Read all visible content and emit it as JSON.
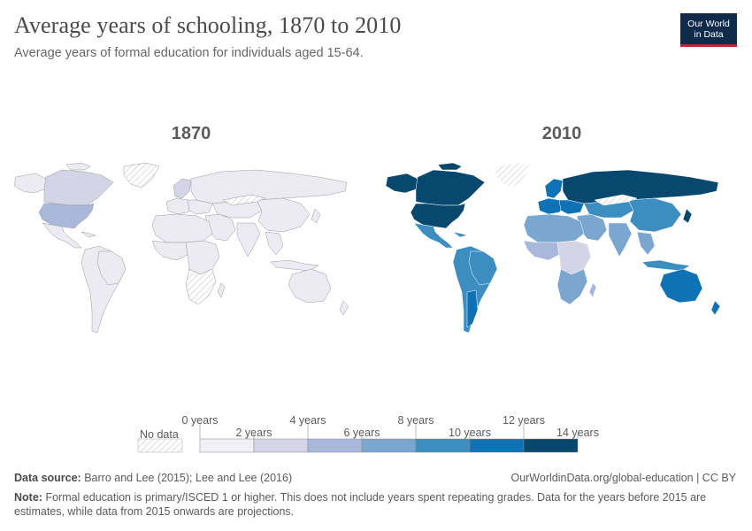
{
  "header": {
    "title": "Average years of schooling, 1870 to 2010",
    "subtitle": "Average years of formal education for individuals aged 15-64."
  },
  "logo": {
    "line1": "Our World",
    "line2": "in Data"
  },
  "maps": [
    {
      "year": "1870",
      "default_color": "#eceaf3"
    },
    {
      "year": "2010",
      "default_color": "#3e8dc1"
    }
  ],
  "legend": {
    "no_data_label": "No data",
    "bins": [
      {
        "color": "#f1f0f7"
      },
      {
        "color": "#d4d4e7"
      },
      {
        "color": "#a9b8da"
      },
      {
        "color": "#7aa6cf"
      },
      {
        "color": "#3c8dc0"
      },
      {
        "color": "#0e72b4"
      },
      {
        "color": "#08486f"
      }
    ],
    "ticks": [
      "0 years",
      "2 years",
      "4 years",
      "6 years",
      "8 years",
      "10 years",
      "12 years",
      "14 years"
    ]
  },
  "footer": {
    "source_label": "Data source:",
    "source_text": "Barro and Lee (2015); Lee and Lee (2016)",
    "url": "OurWorldinData.org/global-education | CC BY",
    "note_label": "Note:",
    "note_text": "Formal education is primary/ISCED 1 or higher. This does not include years spent repeating grades. Data for the years before 2015 are estimates, while data from 2015 onwards are projections."
  },
  "colors": {
    "no_data_hatch": "#cfcfcf",
    "border": "#9a9a9a"
  }
}
